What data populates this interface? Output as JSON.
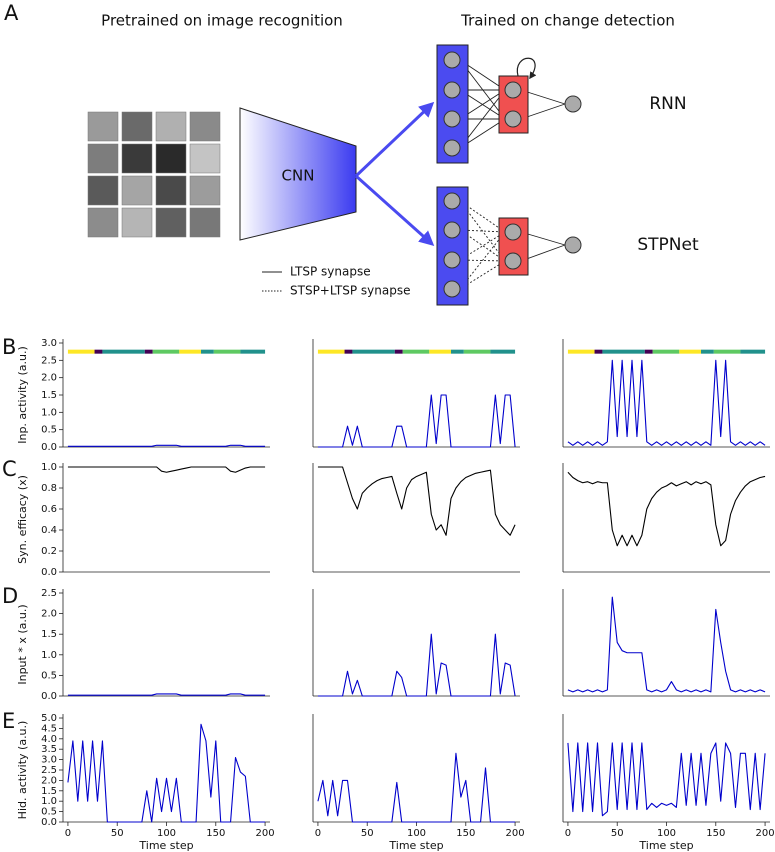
{
  "diagram": {
    "panel": "A",
    "left_title": "Pretrained on image recognition",
    "right_title": "Trained on change detection",
    "cnn": "CNN",
    "rnn": "RNN",
    "stpnet": "STPNet",
    "legend": [
      "LTSP synapse",
      "STSP+LTSP synapse"
    ]
  },
  "panel_labels": [
    "B",
    "C",
    "D",
    "E"
  ],
  "chart_data": [
    {
      "type": "line",
      "ylabel": "Inp. activity (a.u.)",
      "xlim": [
        -5,
        205
      ],
      "ylim": [
        0,
        3
      ],
      "color": "#0000cc",
      "yticks": [
        {
          "value": 0,
          "label": "0.0"
        },
        {
          "value": 0.5,
          "label": "0.5"
        },
        {
          "value": 1,
          "label": "1.0"
        },
        {
          "value": 1.5,
          "label": "1.5"
        },
        {
          "value": 2,
          "label": "2.0"
        },
        {
          "value": 2.5,
          "label": "2.5"
        },
        {
          "value": 3,
          "label": "3.0"
        }
      ],
      "stimulus": {
        "y": 2.75,
        "edges": [
          0,
          27,
          35,
          78,
          86,
          113,
          135,
          148,
          175,
          200
        ],
        "colors": [
          "#fde725",
          "#440154",
          "#21918c",
          "#440154",
          "#5ec962",
          "#fde725",
          "#21918c",
          "#5ec962",
          "#21918c"
        ]
      },
      "x": [
        0,
        5,
        10,
        15,
        20,
        25,
        30,
        35,
        40,
        45,
        50,
        55,
        60,
        65,
        70,
        75,
        80,
        85,
        90,
        95,
        100,
        105,
        110,
        115,
        120,
        125,
        130,
        135,
        140,
        145,
        150,
        155,
        160,
        165,
        170,
        175,
        180,
        185,
        190,
        195,
        200
      ],
      "values": [
        0.02,
        0.02,
        0.02,
        0.02,
        0.02,
        0.02,
        0.02,
        0.02,
        0.02,
        0.02,
        0.02,
        0.02,
        0.02,
        0.02,
        0.02,
        0.02,
        0.02,
        0.02,
        0.05,
        0.05,
        0.05,
        0.05,
        0.05,
        0.02,
        0.02,
        0.02,
        0.02,
        0.02,
        0.02,
        0.02,
        0.02,
        0.02,
        0.02,
        0.05,
        0.05,
        0.05,
        0.02,
        0.02,
        0.02,
        0.02,
        0.02
      ]
    },
    {
      "type": "line",
      "xlim": [
        -5,
        205
      ],
      "ylim": [
        0,
        3
      ],
      "color": "#0000cc",
      "stimulus": {
        "y": 2.75,
        "edges": [
          0,
          27,
          35,
          78,
          86,
          113,
          135,
          148,
          175,
          200
        ],
        "colors": [
          "#fde725",
          "#440154",
          "#21918c",
          "#440154",
          "#5ec962",
          "#fde725",
          "#21918c",
          "#5ec962",
          "#21918c"
        ]
      },
      "x": [
        0,
        5,
        10,
        15,
        20,
        25,
        30,
        35,
        40,
        45,
        50,
        55,
        60,
        65,
        70,
        75,
        80,
        85,
        90,
        95,
        100,
        105,
        110,
        115,
        120,
        125,
        130,
        135,
        140,
        145,
        150,
        155,
        160,
        165,
        170,
        175,
        180,
        185,
        190,
        195,
        200
      ],
      "values": [
        0,
        0,
        0,
        0,
        0,
        0,
        0.6,
        0.05,
        0.6,
        0,
        0,
        0,
        0,
        0,
        0,
        0,
        0.6,
        0.6,
        0,
        0,
        0,
        0,
        0,
        1.5,
        0.1,
        1.5,
        1.5,
        0,
        0,
        0,
        0,
        0,
        0,
        0,
        0,
        0,
        1.5,
        0.1,
        1.5,
        1.5,
        0
      ]
    },
    {
      "type": "line",
      "xlim": [
        -5,
        205
      ],
      "ylim": [
        0,
        3
      ],
      "color": "#0000cc",
      "stimulus": {
        "y": 2.75,
        "edges": [
          0,
          27,
          35,
          78,
          86,
          113,
          135,
          148,
          175,
          200
        ],
        "colors": [
          "#fde725",
          "#440154",
          "#21918c",
          "#440154",
          "#5ec962",
          "#fde725",
          "#21918c",
          "#5ec962",
          "#21918c"
        ]
      },
      "x": [
        0,
        5,
        10,
        15,
        20,
        25,
        30,
        35,
        40,
        45,
        50,
        55,
        60,
        65,
        70,
        75,
        80,
        85,
        90,
        95,
        100,
        105,
        110,
        115,
        120,
        125,
        130,
        135,
        140,
        145,
        150,
        155,
        160,
        165,
        170,
        175,
        180,
        185,
        190,
        195,
        200
      ],
      "values": [
        0.15,
        0.05,
        0.15,
        0.05,
        0.15,
        0.05,
        0.15,
        0.05,
        0.15,
        2.5,
        0.3,
        2.5,
        0.3,
        2.5,
        0.3,
        2.5,
        0.15,
        0.05,
        0.15,
        0.05,
        0.15,
        0.05,
        0.15,
        0.05,
        0.15,
        0.05,
        0.15,
        0.05,
        0.15,
        0.05,
        2.5,
        0.3,
        2.5,
        0.15,
        0.05,
        0.15,
        0.05,
        0.15,
        0.05,
        0.15,
        0.05
      ]
    },
    {
      "type": "line",
      "ylabel": "Syn. efficacy (x)",
      "xlim": [
        -5,
        205
      ],
      "ylim": [
        0,
        1
      ],
      "color": "#000000",
      "yticks": [
        {
          "value": 0,
          "label": "0.0"
        },
        {
          "value": 0.2,
          "label": "0.2"
        },
        {
          "value": 0.4,
          "label": "0.4"
        },
        {
          "value": 0.6,
          "label": "0.6"
        },
        {
          "value": 0.8,
          "label": "0.8"
        },
        {
          "value": 1,
          "label": "1.0"
        }
      ],
      "x": [
        0,
        5,
        10,
        15,
        20,
        25,
        30,
        35,
        40,
        45,
        50,
        55,
        60,
        65,
        70,
        75,
        80,
        85,
        90,
        95,
        100,
        105,
        110,
        115,
        120,
        125,
        130,
        135,
        140,
        145,
        150,
        155,
        160,
        165,
        170,
        175,
        180,
        185,
        190,
        195,
        200
      ],
      "values": [
        1,
        1,
        1,
        1,
        1,
        1,
        1,
        1,
        1,
        1,
        1,
        1,
        1,
        1,
        1,
        1,
        1,
        1,
        1,
        0.96,
        0.95,
        0.96,
        0.97,
        0.98,
        0.99,
        1,
        1,
        1,
        1,
        1,
        1,
        1,
        1,
        0.96,
        0.95,
        0.97,
        0.99,
        1,
        1,
        1,
        1
      ]
    },
    {
      "type": "line",
      "xlim": [
        -5,
        205
      ],
      "ylim": [
        0,
        1
      ],
      "color": "#000000",
      "x": [
        0,
        5,
        10,
        15,
        20,
        25,
        30,
        35,
        40,
        45,
        50,
        55,
        60,
        65,
        70,
        75,
        80,
        85,
        90,
        95,
        100,
        105,
        110,
        115,
        120,
        125,
        130,
        135,
        140,
        145,
        150,
        155,
        160,
        165,
        170,
        175,
        180,
        185,
        190,
        195,
        200
      ],
      "values": [
        1,
        1,
        1,
        1,
        1,
        1,
        0.85,
        0.7,
        0.6,
        0.75,
        0.8,
        0.84,
        0.87,
        0.89,
        0.9,
        0.91,
        0.75,
        0.6,
        0.8,
        0.88,
        0.91,
        0.93,
        0.95,
        0.55,
        0.4,
        0.45,
        0.35,
        0.7,
        0.8,
        0.86,
        0.9,
        0.92,
        0.94,
        0.95,
        0.96,
        0.97,
        0.55,
        0.45,
        0.4,
        0.35,
        0.45
      ]
    },
    {
      "type": "line",
      "xlim": [
        -5,
        205
      ],
      "ylim": [
        0,
        1
      ],
      "color": "#000000",
      "x": [
        0,
        5,
        10,
        15,
        20,
        25,
        30,
        35,
        40,
        45,
        50,
        55,
        60,
        65,
        70,
        75,
        80,
        85,
        90,
        95,
        100,
        105,
        110,
        115,
        120,
        125,
        130,
        135,
        140,
        145,
        150,
        155,
        160,
        165,
        170,
        175,
        180,
        185,
        190,
        195,
        200
      ],
      "values": [
        0.95,
        0.9,
        0.87,
        0.85,
        0.86,
        0.84,
        0.86,
        0.85,
        0.85,
        0.4,
        0.25,
        0.35,
        0.25,
        0.35,
        0.25,
        0.35,
        0.6,
        0.7,
        0.76,
        0.8,
        0.82,
        0.85,
        0.82,
        0.84,
        0.86,
        0.83,
        0.86,
        0.84,
        0.86,
        0.83,
        0.45,
        0.25,
        0.3,
        0.55,
        0.68,
        0.76,
        0.82,
        0.86,
        0.88,
        0.9,
        0.91
      ]
    },
    {
      "type": "line",
      "ylabel": "Input * x (a.u.)",
      "xlim": [
        -5,
        205
      ],
      "ylim": [
        0,
        2.5
      ],
      "color": "#0000cc",
      "yticks": [
        {
          "value": 0,
          "label": "0.0"
        },
        {
          "value": 0.5,
          "label": "0.5"
        },
        {
          "value": 1,
          "label": "1.0"
        },
        {
          "value": 1.5,
          "label": "1.5"
        },
        {
          "value": 2,
          "label": "2.0"
        },
        {
          "value": 2.5,
          "label": "2.5"
        }
      ],
      "x": [
        0,
        5,
        10,
        15,
        20,
        25,
        30,
        35,
        40,
        45,
        50,
        55,
        60,
        65,
        70,
        75,
        80,
        85,
        90,
        95,
        100,
        105,
        110,
        115,
        120,
        125,
        130,
        135,
        140,
        145,
        150,
        155,
        160,
        165,
        170,
        175,
        180,
        185,
        190,
        195,
        200
      ],
      "values": [
        0.02,
        0.02,
        0.02,
        0.02,
        0.02,
        0.02,
        0.02,
        0.02,
        0.02,
        0.02,
        0.02,
        0.02,
        0.02,
        0.02,
        0.02,
        0.02,
        0.02,
        0.02,
        0.05,
        0.05,
        0.05,
        0.05,
        0.05,
        0.02,
        0.02,
        0.02,
        0.02,
        0.02,
        0.02,
        0.02,
        0.02,
        0.02,
        0.02,
        0.05,
        0.05,
        0.05,
        0.02,
        0.02,
        0.02,
        0.02,
        0.02
      ]
    },
    {
      "type": "line",
      "xlim": [
        -5,
        205
      ],
      "ylim": [
        0,
        2.5
      ],
      "color": "#0000cc",
      "x": [
        0,
        5,
        10,
        15,
        20,
        25,
        30,
        35,
        40,
        45,
        50,
        55,
        60,
        65,
        70,
        75,
        80,
        85,
        90,
        95,
        100,
        105,
        110,
        115,
        120,
        125,
        130,
        135,
        140,
        145,
        150,
        155,
        160,
        165,
        170,
        175,
        180,
        185,
        190,
        195,
        200
      ],
      "values": [
        0,
        0,
        0,
        0,
        0,
        0,
        0.6,
        0.05,
        0.38,
        0,
        0,
        0,
        0,
        0,
        0,
        0,
        0.6,
        0.45,
        0,
        0,
        0,
        0,
        0,
        1.5,
        0.05,
        0.8,
        0.75,
        0,
        0,
        0,
        0,
        0,
        0,
        0,
        0,
        0,
        1.5,
        0.05,
        0.8,
        0.75,
        0
      ]
    },
    {
      "type": "line",
      "xlim": [
        -5,
        205
      ],
      "ylim": [
        0,
        2.5
      ],
      "color": "#0000cc",
      "x": [
        0,
        5,
        10,
        15,
        20,
        25,
        30,
        35,
        40,
        45,
        50,
        55,
        60,
        65,
        70,
        75,
        80,
        85,
        90,
        95,
        100,
        105,
        110,
        115,
        120,
        125,
        130,
        135,
        140,
        145,
        150,
        155,
        160,
        165,
        170,
        175,
        180,
        185,
        190,
        195,
        200
      ],
      "values": [
        0.15,
        0.1,
        0.15,
        0.1,
        0.15,
        0.1,
        0.15,
        0.1,
        0.15,
        2.4,
        1.3,
        1.1,
        1.05,
        1.05,
        1.05,
        1.05,
        0.15,
        0.1,
        0.15,
        0.1,
        0.15,
        0.35,
        0.15,
        0.1,
        0.15,
        0.1,
        0.15,
        0.1,
        0.15,
        0.1,
        2.1,
        1.3,
        0.6,
        0.15,
        0.1,
        0.15,
        0.1,
        0.15,
        0.1,
        0.15,
        0.1
      ]
    },
    {
      "type": "line",
      "ylabel": "Hid. activity (a.u.)",
      "xlabel": "Time step",
      "xlim": [
        -5,
        205
      ],
      "ylim": [
        0,
        5
      ],
      "color": "#0000cc",
      "yticks": [
        {
          "value": 0,
          "label": "0.0"
        },
        {
          "value": 0.5,
          "label": "0.5"
        },
        {
          "value": 1,
          "label": "1.0"
        },
        {
          "value": 1.5,
          "label": "1.5"
        },
        {
          "value": 2,
          "label": "2.0"
        },
        {
          "value": 2.5,
          "label": "2.5"
        },
        {
          "value": 3,
          "label": "3.0"
        },
        {
          "value": 3.5,
          "label": "3.5"
        },
        {
          "value": 4,
          "label": "4.0"
        },
        {
          "value": 4.5,
          "label": "4.5"
        },
        {
          "value": 5,
          "label": "5.0"
        }
      ],
      "xticks": [
        0,
        50,
        100,
        150,
        200
      ],
      "x": [
        0,
        5,
        10,
        15,
        20,
        25,
        30,
        35,
        40,
        45,
        50,
        55,
        60,
        65,
        70,
        75,
        80,
        85,
        90,
        95,
        100,
        105,
        110,
        115,
        120,
        125,
        130,
        135,
        140,
        145,
        150,
        155,
        160,
        165,
        170,
        175,
        180,
        185,
        190,
        195,
        200
      ],
      "values": [
        1.9,
        3.9,
        1.0,
        3.9,
        1.0,
        3.9,
        1.0,
        3.9,
        0,
        0,
        0,
        0,
        0,
        0,
        0,
        0,
        1.5,
        0,
        2.1,
        0.5,
        2.1,
        0.5,
        2.1,
        0,
        0,
        0,
        0,
        4.7,
        3.9,
        1.2,
        3.9,
        0,
        0,
        0,
        3.1,
        2.4,
        2.2,
        0,
        0,
        0,
        0
      ]
    },
    {
      "type": "line",
      "xlabel": "Time step",
      "xlim": [
        -5,
        205
      ],
      "ylim": [
        0,
        5
      ],
      "color": "#0000cc",
      "xticks": [
        0,
        50,
        100,
        150,
        200
      ],
      "x": [
        0,
        5,
        10,
        15,
        20,
        25,
        30,
        35,
        40,
        45,
        50,
        55,
        60,
        65,
        70,
        75,
        80,
        85,
        90,
        95,
        100,
        105,
        110,
        115,
        120,
        125,
        130,
        135,
        140,
        145,
        150,
        155,
        160,
        165,
        170,
        175,
        180,
        185,
        190,
        195,
        200
      ],
      "values": [
        1.0,
        2.0,
        0.3,
        2.0,
        0.3,
        2.0,
        2.0,
        0,
        0,
        0,
        0,
        0,
        0,
        0,
        0,
        0,
        1.9,
        0,
        0,
        0,
        0,
        0,
        0,
        0,
        0,
        0,
        0,
        0,
        3.3,
        1.2,
        2.0,
        0,
        0,
        0,
        2.6,
        0,
        0,
        0,
        0,
        0,
        0
      ]
    },
    {
      "type": "line",
      "xlabel": "Time step",
      "xlim": [
        -5,
        205
      ],
      "ylim": [
        0,
        5
      ],
      "color": "#0000cc",
      "xticks": [
        0,
        50,
        100,
        150,
        200
      ],
      "x": [
        0,
        5,
        10,
        15,
        20,
        25,
        30,
        35,
        40,
        45,
        50,
        55,
        60,
        65,
        70,
        75,
        80,
        85,
        90,
        95,
        100,
        105,
        110,
        115,
        120,
        125,
        130,
        135,
        140,
        145,
        150,
        155,
        160,
        165,
        170,
        175,
        180,
        185,
        190,
        195,
        200
      ],
      "values": [
        3.8,
        0.5,
        3.8,
        0.5,
        3.8,
        0.5,
        3.8,
        0.3,
        0.5,
        3.8,
        0.6,
        3.8,
        0.6,
        3.8,
        0.6,
        3.8,
        0.6,
        0.9,
        0.7,
        0.9,
        0.8,
        0.9,
        0.7,
        3.3,
        0.8,
        3.3,
        0.8,
        3.3,
        0.8,
        3.3,
        3.8,
        1.0,
        3.8,
        3.3,
        0.7,
        3.3,
        3.3,
        0.6,
        3.3,
        0.6,
        3.3
      ]
    }
  ]
}
